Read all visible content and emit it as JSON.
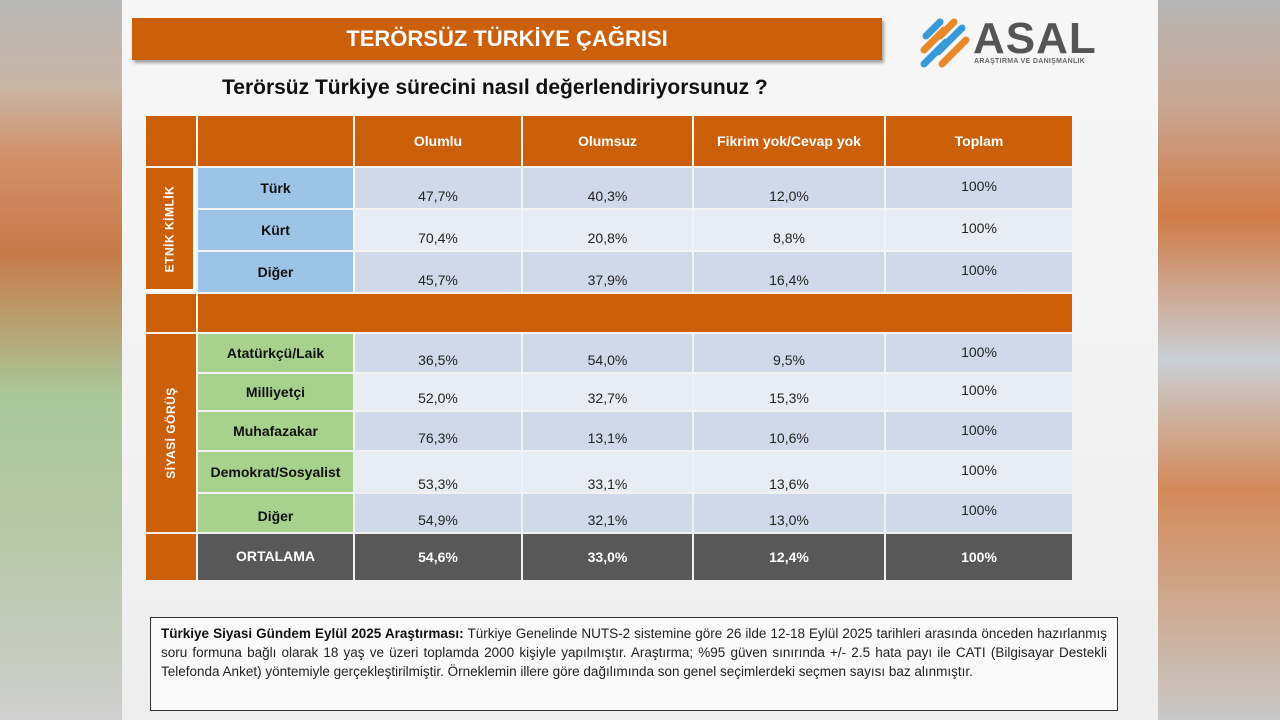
{
  "banner_title": "TERÖRSÜZ TÜRKİYE ÇAĞRISI",
  "logo": {
    "name": "ASAL",
    "subtitle": "ARAŞTIRMA VE DANIŞMANLIK"
  },
  "question": "Terörsüz Türkiye sürecini nasıl değerlendiriyorsunuz ?",
  "columns": [
    "Olumlu",
    "Olumsuz",
    "Fikrim yok/Cevap yok",
    "Toplam"
  ],
  "groups": {
    "ethnic": {
      "label": "ETNİK KİMLİK",
      "rows": [
        {
          "label": "Türk",
          "values": [
            "47,7%",
            "40,3%",
            "12,0%",
            "100%"
          ]
        },
        {
          "label": "Kürt",
          "values": [
            "70,4%",
            "20,8%",
            "8,8%",
            "100%"
          ]
        },
        {
          "label": "Diğer",
          "values": [
            "45,7%",
            "37,9%",
            "16,4%",
            "100%"
          ]
        }
      ]
    },
    "political": {
      "label": "SİYASİ GÖRÜŞ",
      "rows": [
        {
          "label": "Atatürkçü/Laik",
          "values": [
            "36,5%",
            "54,0%",
            "9,5%",
            "100%"
          ]
        },
        {
          "label": "Milliyetçi",
          "values": [
            "52,0%",
            "32,7%",
            "15,3%",
            "100%"
          ]
        },
        {
          "label": "Muhafazakar",
          "values": [
            "76,3%",
            "13,1%",
            "10,6%",
            "100%"
          ]
        },
        {
          "label": "Demokrat/Sosyalist",
          "values": [
            "53,3%",
            "33,1%",
            "13,6%",
            "100%"
          ]
        },
        {
          "label": "Diğer",
          "values": [
            "54,9%",
            "32,1%",
            "13,0%",
            "100%"
          ]
        }
      ]
    }
  },
  "average": {
    "label": "ORTALAMA",
    "values": [
      "54,6%",
      "33,0%",
      "12,4%",
      "100%"
    ]
  },
  "note": {
    "title": "Türkiye Siyasi Gündem Eylül 2025 Araştırması:",
    "text": " Türkiye Genelinde NUTS-2 sistemine göre 26 ilde 12-18 Eylül 2025 tarihleri arasında önceden hazırlanmış soru formuna bağlı olarak 18 yaş ve üzeri toplamda 2000 kişiyle yapılmıştır. Araştırma; %95 güven sınırında +/- 2.5 hata payı ile CATI (Bilgisayar Destekli Telefonda Anket) yöntemiyle gerçekleştirilmiştir. Örneklemin illere göre dağılımında son genel seçimlerdeki seçmen sayısı baz alınmıştır."
  },
  "colors": {
    "accent": "#cc5f0a",
    "ethnic_label_bg": "#9dc3e6",
    "political_label_bg": "#a9d18e",
    "average_bg": "#585858"
  }
}
